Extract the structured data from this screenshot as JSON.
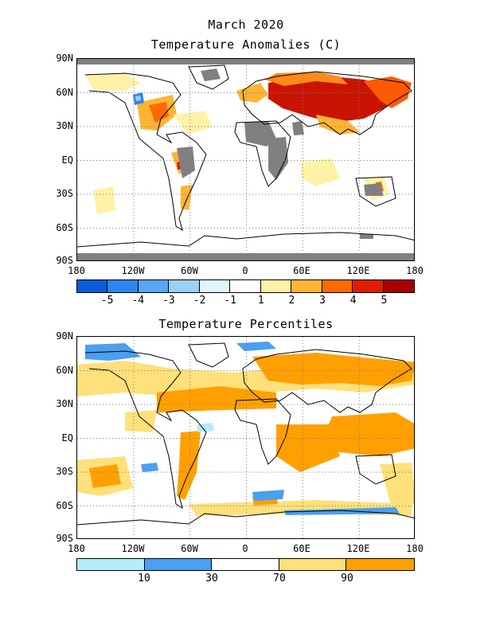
{
  "titles": {
    "line1": "March 2020",
    "line2": "Temperature Anomalies (C)",
    "map2": "Temperature Percentiles"
  },
  "lat_labels": [
    "90N",
    "60N",
    "30N",
    "EQ",
    "30S",
    "60S",
    "90S"
  ],
  "lon_labels": [
    "180",
    "120W",
    "60W",
    "0",
    "60E",
    "120E",
    "180"
  ],
  "anomaly_legend": {
    "colors": [
      "#0a5bd8",
      "#2f84ee",
      "#5aa6f2",
      "#9ccff7",
      "#dff6ff",
      "#ffffff",
      "#fff2a6",
      "#ffb433",
      "#ff6a00",
      "#e11d00",
      "#a60000"
    ],
    "labels": [
      "-5",
      "-4",
      "-3",
      "-2",
      "-1",
      "1",
      "2",
      "3",
      "4",
      "5"
    ]
  },
  "percentile_legend": {
    "colors": [
      "#b4ecfc",
      "#4a9ff0",
      "#ffffff",
      "#ffe07a",
      "#ffa000"
    ],
    "labels": [
      "10",
      "30",
      "70",
      "90"
    ]
  },
  "colors": {
    "land_missing": "#808080",
    "coast": "#000000",
    "grid": "#7a7a7a"
  }
}
